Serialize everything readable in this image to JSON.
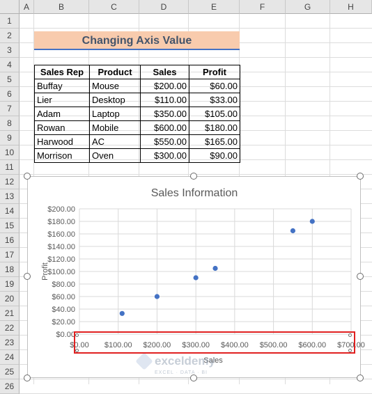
{
  "columns": [
    "A",
    "B",
    "C",
    "D",
    "E",
    "F",
    "G",
    "H"
  ],
  "rows": [
    "1",
    "2",
    "3",
    "4",
    "5",
    "6",
    "7",
    "8",
    "9",
    "10",
    "11",
    "12",
    "13",
    "14",
    "15",
    "16",
    "17",
    "18",
    "19",
    "20",
    "21",
    "22",
    "23",
    "24",
    "25",
    "26"
  ],
  "sheet_title": "Changing Axis Value",
  "table": {
    "headers": [
      "Sales Rep",
      "Product",
      "Sales",
      "Profit"
    ],
    "rows": [
      [
        "Buffay",
        "Mouse",
        "$200.00",
        "$60.00"
      ],
      [
        "Lier",
        "Desktop",
        "$110.00",
        "$33.00"
      ],
      [
        "Adam",
        "Laptop",
        "$350.00",
        "$105.00"
      ],
      [
        "Rowan",
        "Mobile",
        "$600.00",
        "$180.00"
      ],
      [
        "Harwood",
        "AC",
        "$550.00",
        "$165.00"
      ],
      [
        "Morrison",
        "Oven",
        "$300.00",
        "$90.00"
      ]
    ]
  },
  "chart_data": {
    "type": "scatter",
    "title": "Sales Information",
    "xlabel": "Sales",
    "ylabel": "Profit",
    "xlim": [
      0,
      700
    ],
    "ylim": [
      0,
      200
    ],
    "x_ticks": [
      "$0.00",
      "$100.00",
      "$200.00",
      "$300.00",
      "$400.00",
      "$500.00",
      "$600.00",
      "$700.00"
    ],
    "y_ticks": [
      "$0.00",
      "$20.00",
      "$40.00",
      "$60.00",
      "$80.00",
      "$100.00",
      "$120.00",
      "$140.00",
      "$160.00",
      "$180.00",
      "$200.00"
    ],
    "points": [
      {
        "x": 200,
        "y": 60
      },
      {
        "x": 110,
        "y": 33
      },
      {
        "x": 350,
        "y": 105
      },
      {
        "x": 600,
        "y": 180
      },
      {
        "x": 550,
        "y": 165
      },
      {
        "x": 300,
        "y": 90
      }
    ],
    "grid": true,
    "point_color": "#4472c4"
  },
  "watermark": {
    "brand": "exceldemy",
    "tagline": "EXCEL · DATA · BI"
  }
}
